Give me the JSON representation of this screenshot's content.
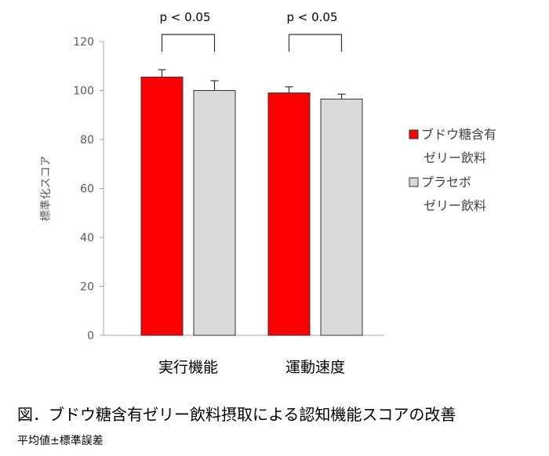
{
  "caption": "図．ブドウ糖含有ゼリー飲料摂取による認知機能スコアの改善",
  "subcaption": "平均値±標準誤差",
  "chart_data": {
    "type": "bar",
    "categories": [
      "実行機能",
      "運動速度"
    ],
    "series": [
      {
        "name": "ブドウ糖含有ゼリー飲料",
        "legend_lines": [
          "ブドウ糖含有",
          "ゼリー飲料"
        ],
        "color": "#ff0000",
        "values": [
          105.5,
          99
        ],
        "errors": [
          3,
          2.5
        ]
      },
      {
        "name": "プラセボゼリー飲料",
        "legend_lines": [
          "プラセボ",
          "ゼリー飲料"
        ],
        "color": "#d9d9d9",
        "values": [
          100,
          96.5
        ],
        "errors": [
          4,
          2
        ]
      }
    ],
    "ylabel": "標準化スコア",
    "ylim": [
      0,
      120
    ],
    "yticks": [
      "0",
      "20",
      "40",
      "60",
      "80",
      "100",
      "120"
    ],
    "grid": false,
    "legend_position": "right",
    "significance": [
      {
        "category": "実行機能",
        "label": "p < 0.05"
      },
      {
        "category": "運動速度",
        "label": "p < 0.05"
      }
    ]
  }
}
